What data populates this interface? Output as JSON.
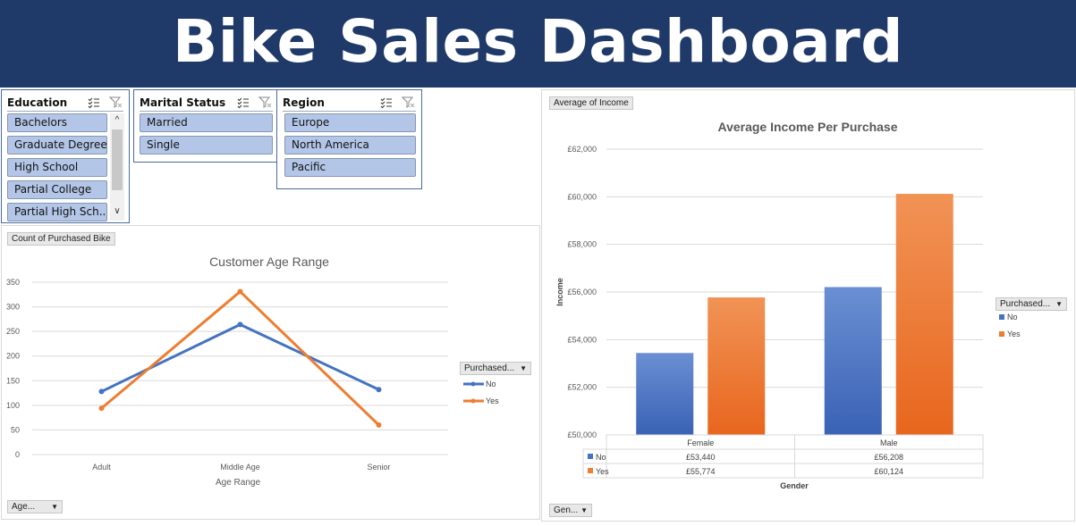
{
  "title": "Bike Sales Dashboard",
  "slicers": {
    "education": {
      "title": "Education",
      "items": [
        "Bachelors",
        "Graduate Degree",
        "High School",
        "Partial College",
        "Partial High Sch..."
      ]
    },
    "marital": {
      "title": "Marital Status",
      "items": [
        "Married",
        "Single"
      ]
    },
    "region": {
      "title": "Region",
      "items": [
        "Europe",
        "North America",
        "Pacific"
      ]
    }
  },
  "age_chart": {
    "field_button": "Count of Purchased Bike",
    "axis_filter": "Age...",
    "legend_filter": "Purchased...",
    "colors": {
      "No": "#4472c4",
      "Yes": "#ed7d31"
    }
  },
  "income_chart": {
    "field_button": "Average of Income",
    "axis_filter": "Gen...",
    "legend_filter": "Purchased...",
    "colors": {
      "No": "#4472c4",
      "Yes": "#ed7d31"
    }
  },
  "chart_data": [
    {
      "type": "line",
      "title": "Customer Age Range",
      "xlabel": "Age Range",
      "ylabel": "",
      "categories": [
        "Adult",
        "Middle Age",
        "Senior"
      ],
      "series": [
        {
          "name": "No",
          "values": [
            128,
            264,
            132
          ]
        },
        {
          "name": "Yes",
          "values": [
            94,
            331,
            60
          ]
        }
      ],
      "ylim": [
        0,
        350
      ],
      "yticks": [
        "0",
        "50",
        "100",
        "150",
        "200",
        "250",
        "300",
        "350"
      ],
      "grid": true,
      "legend": "right"
    },
    {
      "type": "bar",
      "title": "Average Income Per Purchase",
      "xlabel": "Gender",
      "ylabel": "Income",
      "categories": [
        "Female",
        "Male"
      ],
      "series": [
        {
          "name": "No",
          "values": [
            53440,
            56208
          ],
          "labels": [
            "£53,440",
            "£56,208"
          ]
        },
        {
          "name": "Yes",
          "values": [
            55774,
            60124
          ],
          "labels": [
            "£55,774",
            "£60,124"
          ]
        }
      ],
      "ylim": [
        50000,
        62000
      ],
      "yticks": [
        "£50,000",
        "£52,000",
        "£54,000",
        "£56,000",
        "£58,000",
        "£60,000",
        "£62,000"
      ],
      "grid": true,
      "legend": "right",
      "data_table": true
    }
  ]
}
